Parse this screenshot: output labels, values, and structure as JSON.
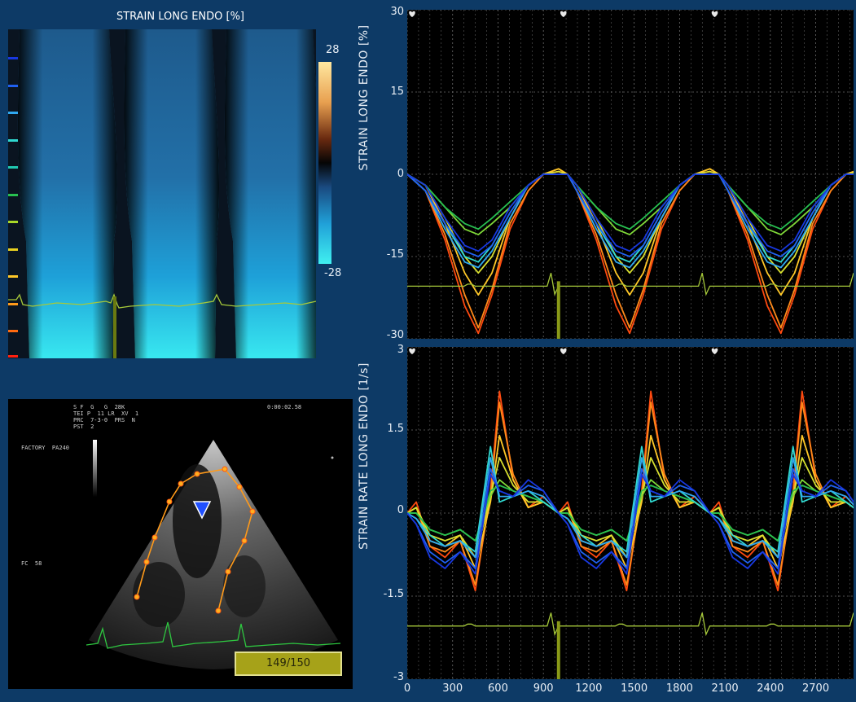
{
  "mmode": {
    "title": "STRAIN LONG ENDO [%]",
    "colorbar_max": "28",
    "colorbar_min": "-28"
  },
  "echo": {
    "header_line1": "S F  G   G  28K",
    "header_line2": "TEI P  11 LR  XV  1",
    "header_line3": "PRC  7-3-0  PRS  N",
    "header_line4": "PST  2",
    "timestamp": "0:00:02.58",
    "probe_label": "FACTORY  PA240",
    "fc_label": "FC  58",
    "frame_counter": "149/150"
  },
  "strain_chart": {
    "ylabel": "STRAIN LONG ENDO [%]",
    "yticks": [
      "30",
      "15",
      "0",
      "-15",
      "-30"
    ]
  },
  "rate_chart": {
    "ylabel": "STRAIN RATE LONG ENDO [1/s]",
    "yticks": [
      "3",
      "1.5",
      "0",
      "-1.5",
      "-3"
    ]
  },
  "xticks": [
    "0",
    "300",
    "600",
    "900",
    "1200",
    "1500",
    "1800",
    "2100",
    "2400",
    "2700"
  ],
  "colors": {
    "background": "#0d3a66",
    "ecg": "#a6c93a",
    "grid": "#6c6c6c",
    "segments": [
      "#ff4a10",
      "#ff8a1a",
      "#ffc828",
      "#d8e030",
      "#7fd838",
      "#28c050",
      "#30d8d0",
      "#30a8f0",
      "#2060f0",
      "#1838e0"
    ]
  },
  "chart_data": [
    {
      "type": "line",
      "ylabel": "STRAIN LONG ENDO [%]",
      "ylim": [
        -30,
        30
      ],
      "xlim": [
        0,
        2950
      ],
      "x": [
        0,
        120,
        250,
        380,
        470,
        560,
        680,
        800,
        900,
        1000,
        1060
      ],
      "cycle_length_ms": 1000,
      "grid": true,
      "series": [
        {
          "values": [
            0,
            -3,
            -12,
            -24,
            -29,
            -22,
            -10,
            -3,
            0,
            0.5,
            0
          ]
        },
        {
          "values": [
            0,
            -3,
            -11,
            -22,
            -28,
            -21,
            -9,
            -3,
            0,
            1,
            0
          ]
        },
        {
          "values": [
            0,
            -2,
            -9,
            -18,
            -22,
            -18,
            -8,
            -2,
            0,
            1,
            0
          ]
        },
        {
          "values": [
            0,
            -2,
            -8,
            -15,
            -18,
            -15,
            -8,
            -2,
            0,
            0.5,
            0
          ]
        },
        {
          "values": [
            0,
            -2,
            -6,
            -10,
            -11,
            -9,
            -6,
            -2,
            0,
            0,
            0
          ]
        },
        {
          "values": [
            0,
            -2,
            -6,
            -9,
            -10,
            -8,
            -5,
            -2,
            0,
            0,
            0
          ]
        },
        {
          "values": [
            0,
            -3,
            -9,
            -15,
            -16,
            -13,
            -7,
            -2,
            0,
            0,
            0
          ]
        },
        {
          "values": [
            0,
            -3,
            -10,
            -16,
            -17,
            -14,
            -8,
            -2,
            0,
            0,
            0
          ]
        },
        {
          "values": [
            0,
            -3,
            -9,
            -14,
            -15,
            -13,
            -7,
            -2,
            0,
            0,
            0
          ]
        },
        {
          "values": [
            0,
            -2,
            -8,
            -13,
            -14,
            -12,
            -6,
            -2,
            0,
            0,
            0
          ]
        }
      ]
    },
    {
      "type": "line",
      "ylabel": "STRAIN RATE LONG ENDO [1/s]",
      "ylim": [
        -3,
        3
      ],
      "xlim": [
        0,
        2950
      ],
      "x": [
        0,
        60,
        150,
        250,
        350,
        450,
        550,
        610,
        700,
        800,
        900,
        1000
      ],
      "cycle_length_ms": 1000,
      "grid": true,
      "series": [
        {
          "values": [
            0,
            0.2,
            -0.6,
            -0.8,
            -0.5,
            -1.4,
            0.4,
            2.2,
            0.6,
            0.1,
            0.3,
            0
          ]
        },
        {
          "values": [
            0,
            0.1,
            -0.6,
            -0.7,
            -0.5,
            -1.3,
            0.3,
            2.0,
            0.7,
            0.1,
            0.2,
            0
          ]
        },
        {
          "values": [
            0,
            0.1,
            -0.5,
            -0.6,
            -0.4,
            -1.0,
            0.2,
            1.4,
            0.6,
            0.1,
            0.2,
            0
          ]
        },
        {
          "values": [
            0,
            0.1,
            -0.4,
            -0.5,
            -0.4,
            -0.8,
            0.3,
            1.0,
            0.5,
            0.2,
            0.2,
            0
          ]
        },
        {
          "values": [
            0,
            0.0,
            -0.3,
            -0.4,
            -0.3,
            -0.5,
            0.3,
            0.6,
            0.4,
            0.3,
            0.2,
            0
          ]
        },
        {
          "values": [
            0,
            0.0,
            -0.3,
            -0.4,
            -0.3,
            -0.5,
            0.4,
            0.5,
            0.4,
            0.3,
            0.2,
            0
          ]
        },
        {
          "values": [
            0,
            -0.1,
            -0.4,
            -0.6,
            -0.5,
            -0.7,
            1.2,
            0.2,
            0.3,
            0.4,
            0.2,
            0
          ]
        },
        {
          "values": [
            0,
            -0.1,
            -0.5,
            -0.6,
            -0.5,
            -0.8,
            1.0,
            0.3,
            0.3,
            0.4,
            0.3,
            0
          ]
        },
        {
          "values": [
            0,
            -0.2,
            -0.7,
            -0.9,
            -0.7,
            -1.0,
            0.8,
            0.4,
            0.3,
            0.5,
            0.4,
            0
          ]
        },
        {
          "values": [
            0,
            -0.2,
            -0.8,
            -1.0,
            -0.7,
            -1.1,
            0.7,
            0.4,
            0.3,
            0.6,
            0.4,
            0
          ]
        }
      ]
    }
  ]
}
